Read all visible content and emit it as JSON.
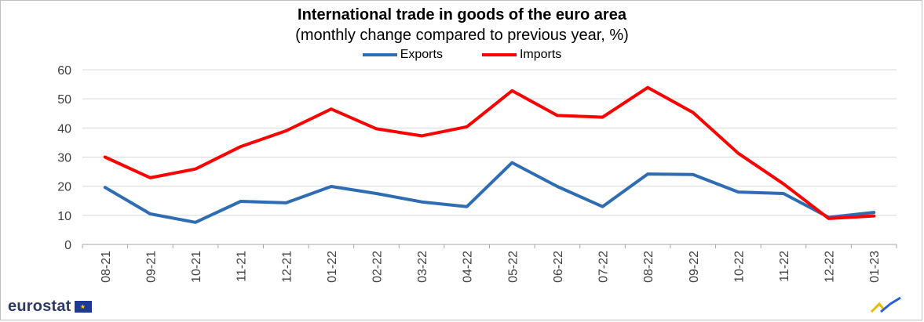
{
  "chart_data": {
    "type": "line",
    "title": "International trade in goods of the euro area",
    "subtitle": "(monthly change compared to previous year, %)",
    "categories": [
      "08-21",
      "09-21",
      "10-21",
      "11-21",
      "12-21",
      "01-22",
      "02-22",
      "03-22",
      "04-22",
      "05-22",
      "06-22",
      "07-22",
      "08-22",
      "09-22",
      "10-22",
      "11-22",
      "12-22",
      "01-23"
    ],
    "series": [
      {
        "name": "Exports",
        "color": "#2e6db4",
        "values": [
          19.6,
          10.5,
          7.6,
          14.8,
          14.3,
          19.9,
          17.5,
          14.6,
          13.0,
          28.1,
          19.9,
          13.0,
          24.2,
          24.0,
          18.0,
          17.5,
          9.3,
          11.0
        ]
      },
      {
        "name": "Imports",
        "color": "#ff0000",
        "values": [
          30.0,
          22.9,
          25.9,
          33.6,
          39.0,
          46.5,
          39.7,
          37.3,
          40.4,
          52.8,
          44.3,
          43.7,
          53.9,
          45.3,
          31.3,
          20.8,
          8.9,
          9.8
        ]
      }
    ],
    "yticks": [
      0,
      10,
      20,
      30,
      40,
      50,
      60
    ],
    "ylim": [
      0,
      60
    ],
    "grid": true,
    "legend_position": "top-center"
  },
  "branding": {
    "logo_text": "eurostat"
  }
}
